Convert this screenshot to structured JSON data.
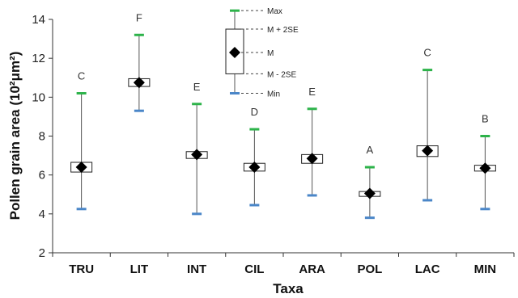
{
  "chart_data": {
    "type": "boxplot",
    "title": "",
    "xlabel": "Taxa",
    "ylabel": "Pollen grain area (10²μm²)",
    "ylim": [
      2,
      14
    ],
    "yticks": [
      "2",
      "4",
      "6",
      "8",
      "10",
      "12",
      "14"
    ],
    "grid": false,
    "categories": [
      "TRU",
      "LIT",
      "INT",
      "CIL",
      "ARA",
      "POL",
      "LAC",
      "MIN"
    ],
    "mean": [
      6.4,
      10.75,
      7.05,
      6.4,
      6.85,
      5.05,
      7.25,
      6.35
    ],
    "plus_2se": [
      6.65,
      10.95,
      7.2,
      6.6,
      7.05,
      5.15,
      7.5,
      6.5
    ],
    "minus_2se": [
      6.15,
      10.55,
      6.85,
      6.2,
      6.6,
      4.9,
      6.95,
      6.2
    ],
    "max": [
      10.2,
      13.2,
      9.65,
      8.35,
      9.4,
      6.4,
      11.4,
      8.0
    ],
    "min": [
      4.25,
      9.3,
      4.0,
      4.45,
      4.95,
      3.8,
      4.7,
      4.25
    ],
    "group_letters": [
      "C",
      "F",
      "E",
      "D",
      "E",
      "A",
      "C",
      "B"
    ],
    "legend": {
      "placement": "top-center",
      "labels": [
        "Max",
        "M + 2SE",
        "M",
        "M - 2SE",
        "Min"
      ],
      "max": 14.45,
      "plus_2se": 13.5,
      "mean": 12.3,
      "minus_2se": 11.2,
      "min": 10.2
    },
    "colors": {
      "max": "#2db34a",
      "min": "#4a86c8",
      "mean": "#000000",
      "line": "#555555"
    }
  }
}
